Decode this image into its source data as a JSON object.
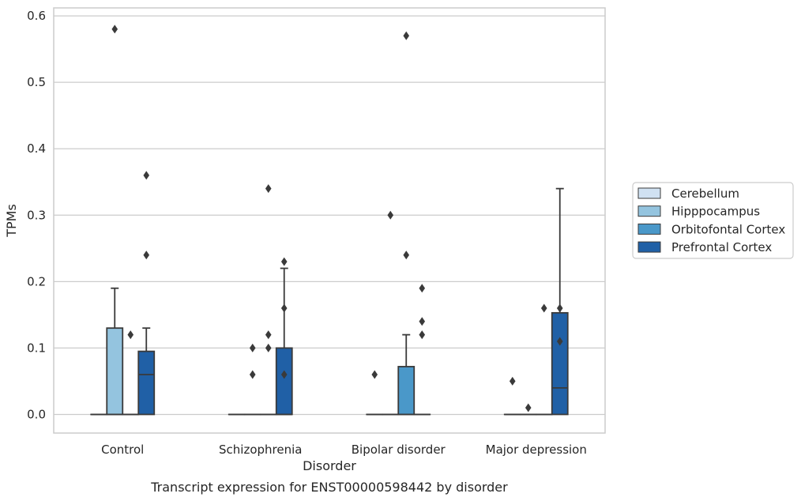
{
  "chart_data": {
    "type": "box",
    "title": "",
    "caption": "Transcript expression for ENST00000598442 by disorder",
    "xlabel": "Disorder",
    "ylabel": "TPMs",
    "ylim": [
      -0.028,
      0.612
    ],
    "yticks": [
      "0.0",
      "0.1",
      "0.2",
      "0.3",
      "0.4",
      "0.5",
      "0.6"
    ],
    "grid": "horizontal",
    "legend_position": "right",
    "categories": [
      "Control",
      "Schizophrenia",
      "Bipolar disorder",
      "Major depression"
    ],
    "series": [
      {
        "name": "Cerebellum",
        "color": "#d0e1f2",
        "boxes": [
          {
            "q1": 0,
            "median": 0,
            "q3": 0,
            "whisker_low": 0,
            "whisker_high": 0,
            "outliers": []
          },
          {
            "q1": 0,
            "median": 0,
            "q3": 0,
            "whisker_low": 0,
            "whisker_high": 0,
            "outliers": []
          },
          {
            "q1": 0,
            "median": 0,
            "q3": 0,
            "whisker_low": 0,
            "whisker_high": 0,
            "outliers": [
              0.06
            ]
          },
          {
            "q1": 0,
            "median": 0,
            "q3": 0,
            "whisker_low": 0,
            "whisker_high": 0,
            "outliers": [
              0.05
            ]
          }
        ]
      },
      {
        "name": "Hipppocampus",
        "color": "#94c4df",
        "boxes": [
          {
            "q1": 0,
            "median": 0,
            "q3": 0.13,
            "whisker_low": 0,
            "whisker_high": 0.19,
            "outliers": [
              0.58
            ]
          },
          {
            "q1": 0,
            "median": 0,
            "q3": 0,
            "whisker_low": 0,
            "whisker_high": 0,
            "outliers": [
              0.06,
              0.1
            ]
          },
          {
            "q1": 0,
            "median": 0,
            "q3": 0,
            "whisker_low": 0,
            "whisker_high": 0,
            "outliers": [
              0.3
            ]
          },
          {
            "q1": 0,
            "median": 0,
            "q3": 0,
            "whisker_low": 0,
            "whisker_high": 0,
            "outliers": [
              0.01
            ]
          }
        ]
      },
      {
        "name": "Orbitofontal Cortex",
        "color": "#4a98c9",
        "boxes": [
          {
            "q1": 0,
            "median": 0,
            "q3": 0,
            "whisker_low": 0,
            "whisker_high": 0,
            "outliers": [
              0.12
            ]
          },
          {
            "q1": 0,
            "median": 0,
            "q3": 0,
            "whisker_low": 0,
            "whisker_high": 0,
            "outliers": [
              0.1,
              0.12,
              0.34
            ]
          },
          {
            "q1": 0,
            "median": 0,
            "q3": 0.072,
            "whisker_low": 0,
            "whisker_high": 0.12,
            "outliers": [
              0.24,
              0.57
            ]
          },
          {
            "q1": 0,
            "median": 0,
            "q3": 0,
            "whisker_low": 0,
            "whisker_high": 0,
            "outliers": [
              0.16
            ]
          }
        ]
      },
      {
        "name": "Prefrontal Cortex",
        "color": "#2060a6",
        "boxes": [
          {
            "q1": 0,
            "median": 0.06,
            "q3": 0.095,
            "whisker_low": 0,
            "whisker_high": 0.13,
            "outliers": [
              0.24,
              0.36
            ]
          },
          {
            "q1": 0,
            "median": 0,
            "q3": 0.1,
            "whisker_low": 0,
            "whisker_high": 0.22,
            "outliers": [
              0.06,
              0.16,
              0.23
            ]
          },
          {
            "q1": 0,
            "median": 0,
            "q3": 0,
            "whisker_low": 0,
            "whisker_high": 0,
            "outliers": [
              0.12,
              0.14,
              0.19
            ]
          },
          {
            "q1": 0,
            "median": 0.04,
            "q3": 0.153,
            "whisker_low": 0,
            "whisker_high": 0.34,
            "outliers": [
              0.11,
              0.16
            ]
          }
        ]
      }
    ]
  }
}
